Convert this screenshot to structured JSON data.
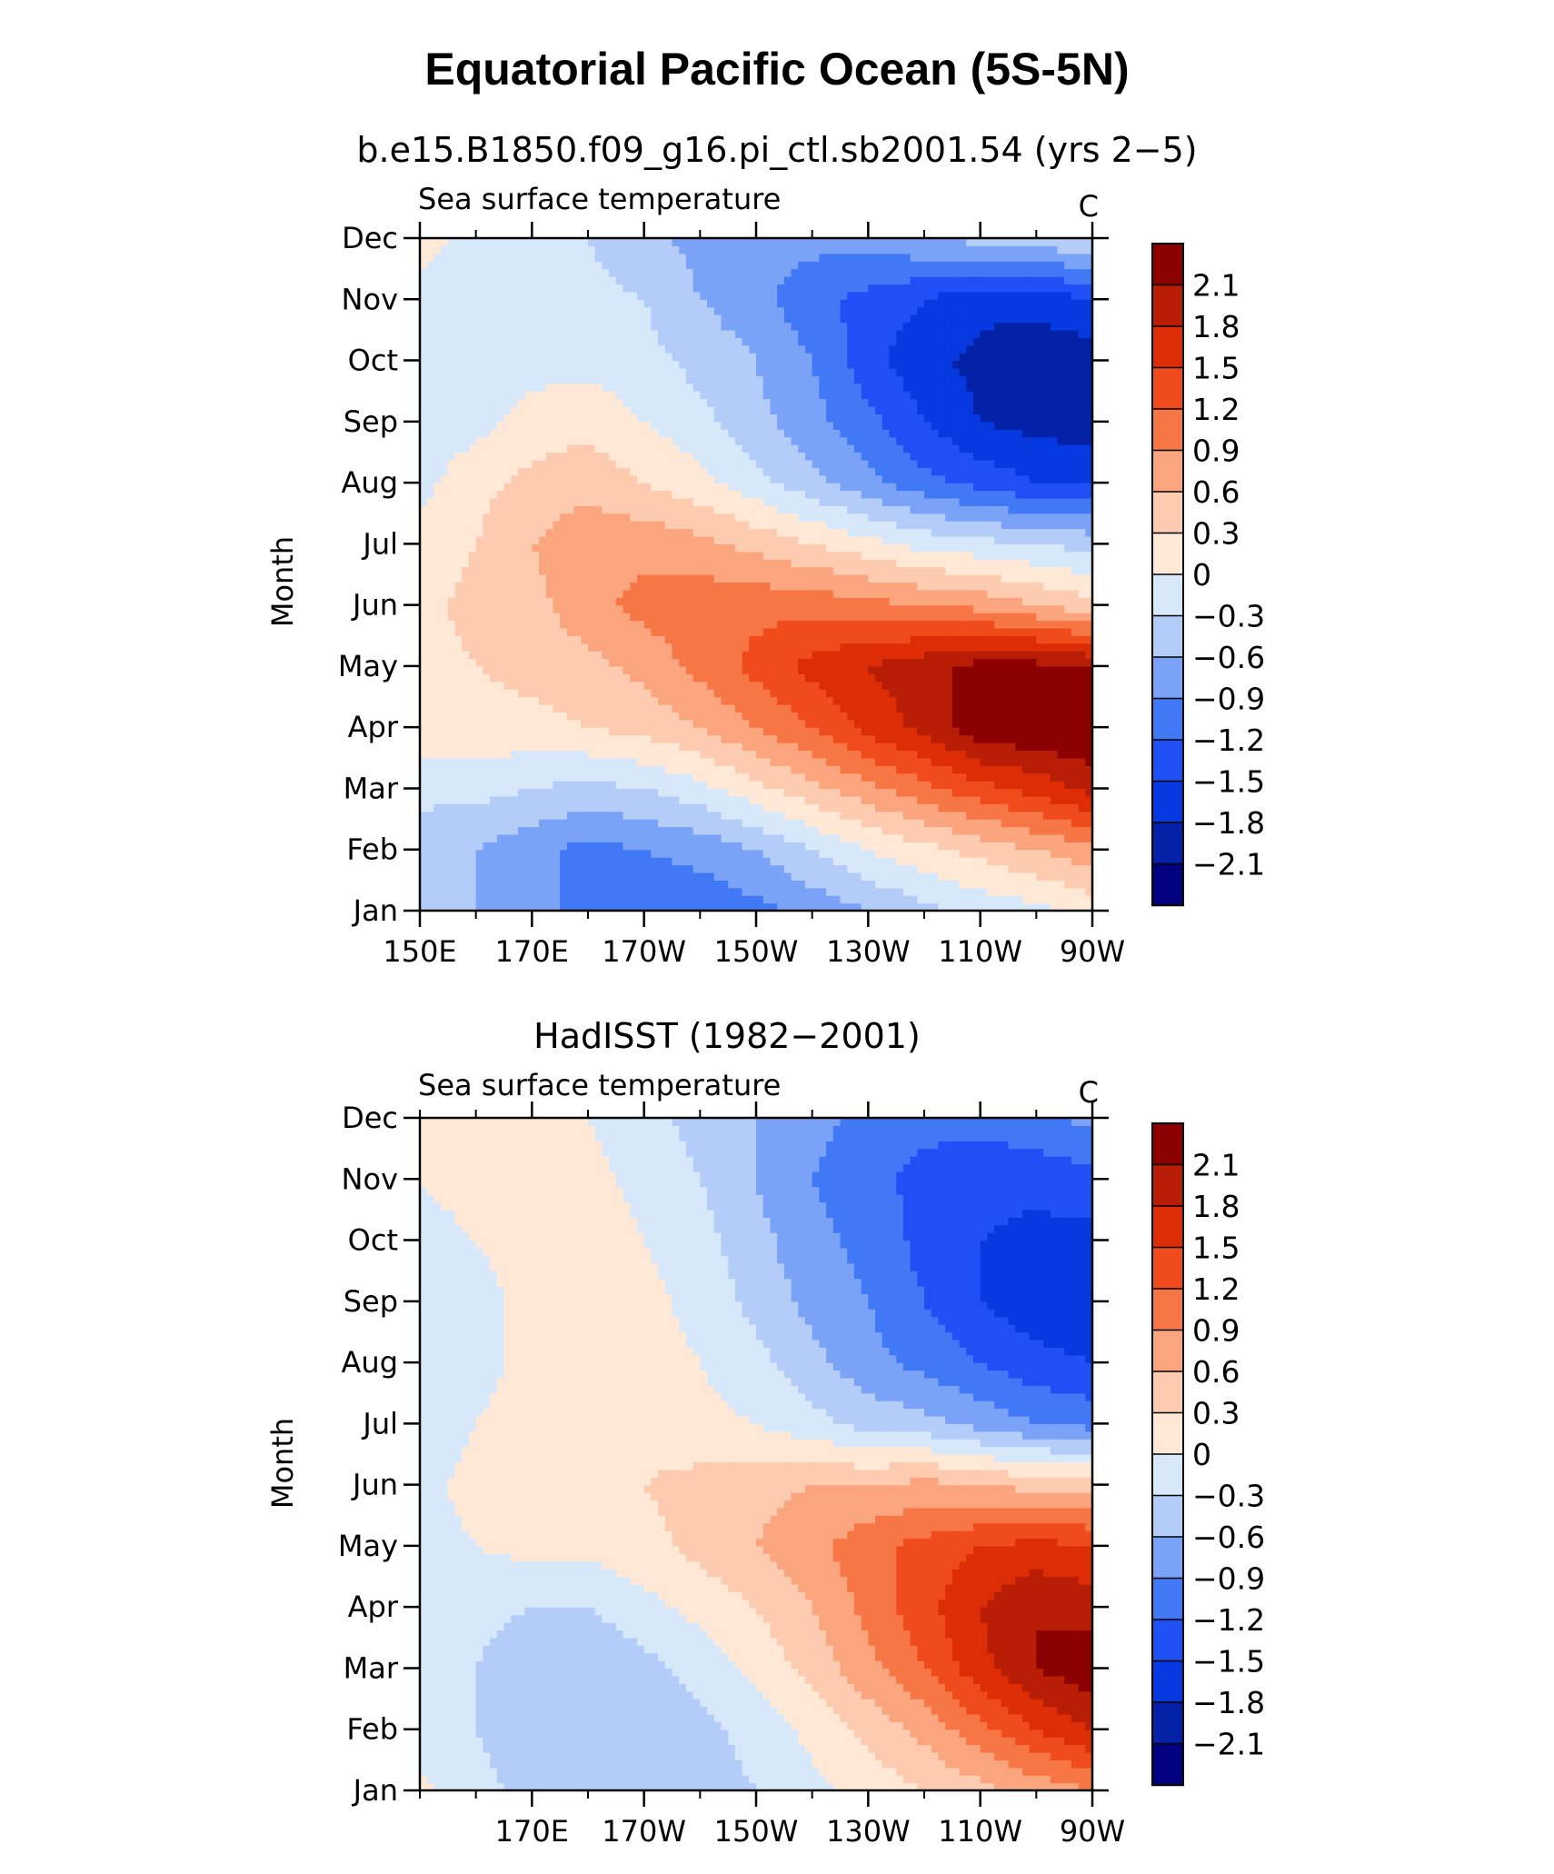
{
  "figure": {
    "title": "Equatorial Pacific Ocean (5S-5N)"
  },
  "chart_data": [
    {
      "type": "heatmap",
      "subtitle": "b.e15.B1850.f09_g16.pi_ctl.sb2001.54 (yrs 2−5)",
      "left_label": "Sea surface temperature",
      "units": "C",
      "xlabel": "",
      "ylabel": "Month",
      "x_tick_labels": [
        "150E",
        "170E",
        "170W",
        "150W",
        "130W",
        "110W",
        "90W"
      ],
      "x_ticks_lon": [
        150,
        170,
        190,
        210,
        230,
        250,
        270
      ],
      "y_tick_labels": [
        "Jan",
        "Feb",
        "Mar",
        "Apr",
        "May",
        "Jun",
        "Jul",
        "Aug",
        "Sep",
        "Oct",
        "Nov",
        "Dec"
      ],
      "xlim": [
        150,
        270
      ],
      "ylim": [
        1,
        12
      ],
      "contour_levels": [
        -2.1,
        -1.8,
        -1.5,
        -1.2,
        -0.9,
        -0.6,
        -0.3,
        0,
        0.3,
        0.6,
        0.9,
        1.2,
        1.5,
        1.8,
        2.1
      ],
      "colorbar_labels": [
        "2.1",
        "1.8",
        "1.5",
        "1.2",
        "0.9",
        "0.6",
        "0.3",
        "0",
        "−0.3",
        "−0.6",
        "−0.9",
        "−1.2",
        "−1.5",
        "−1.8",
        "−2.1"
      ],
      "lon_grid": [
        150,
        160,
        170,
        180,
        190,
        200,
        210,
        220,
        230,
        240,
        250,
        260,
        270
      ],
      "values": [
        [
          -0.5,
          -0.6,
          -0.8,
          -1.0,
          -1.1,
          -1.1,
          -1.0,
          -0.8,
          -0.6,
          -0.4,
          -0.2,
          -0.1,
          0.1
        ],
        [
          -0.5,
          -0.6,
          -0.8,
          -1.0,
          -0.9,
          -0.8,
          -0.6,
          -0.3,
          0.0,
          0.2,
          0.4,
          0.6,
          0.8
        ],
        [
          -0.2,
          -0.2,
          -0.3,
          -0.4,
          -0.3,
          -0.1,
          0.2,
          0.5,
          0.8,
          1.1,
          1.4,
          1.6,
          1.9
        ],
        [
          0.2,
          0.2,
          0.2,
          0.3,
          0.4,
          0.6,
          0.9,
          1.2,
          1.6,
          1.9,
          2.3,
          2.4,
          2.4
        ],
        [
          0.2,
          0.3,
          0.4,
          0.5,
          0.7,
          1.0,
          1.3,
          1.6,
          1.8,
          2.0,
          2.2,
          2.2,
          2.1
        ],
        [
          0.2,
          0.4,
          0.5,
          0.8,
          1.0,
          1.1,
          1.1,
          1.1,
          1.0,
          0.9,
          0.8,
          0.6,
          0.4
        ],
        [
          0.1,
          0.3,
          0.6,
          0.8,
          0.8,
          0.7,
          0.5,
          0.3,
          0.1,
          -0.1,
          -0.2,
          -0.3,
          -0.4
        ],
        [
          -0.1,
          0.2,
          0.4,
          0.5,
          0.3,
          0.1,
          -0.2,
          -0.5,
          -0.8,
          -1.1,
          -1.3,
          -1.5,
          -1.5
        ],
        [
          -0.2,
          -0.1,
          0.1,
          0.2,
          0.0,
          -0.2,
          -0.5,
          -0.8,
          -1.1,
          -1.5,
          -1.8,
          -1.9,
          -2.0
        ],
        [
          -0.2,
          -0.2,
          -0.1,
          -0.1,
          -0.2,
          -0.4,
          -0.6,
          -0.9,
          -1.4,
          -1.7,
          -1.9,
          -2.0,
          -2.0
        ],
        [
          -0.1,
          -0.2,
          -0.2,
          -0.2,
          -0.3,
          -0.6,
          -0.8,
          -1.1,
          -1.3,
          -1.5,
          -1.7,
          -1.7,
          -1.5
        ],
        [
          0.1,
          -0.1,
          -0.2,
          -0.3,
          -0.5,
          -0.7,
          -0.8,
          -0.8,
          -0.8,
          -0.6,
          -0.5,
          -0.4,
          -0.3
        ]
      ]
    },
    {
      "type": "heatmap",
      "subtitle": "HadISST (1982−2001)",
      "left_label": "Sea surface temperature",
      "units": "C",
      "xlabel": "",
      "ylabel": "Month",
      "x_tick_labels": [
        "170E",
        "170W",
        "150W",
        "130W",
        "110W",
        "90W"
      ],
      "x_ticks_lon": [
        170,
        190,
        210,
        230,
        250,
        270
      ],
      "y_tick_labels": [
        "Jan",
        "Feb",
        "Mar",
        "Apr",
        "May",
        "Jun",
        "Jul",
        "Aug",
        "Sep",
        "Oct",
        "Nov",
        "Dec"
      ],
      "xlim": [
        150,
        270
      ],
      "ylim": [
        1,
        12
      ],
      "contour_levels": [
        -2.1,
        -1.8,
        -1.5,
        -1.2,
        -0.9,
        -0.6,
        -0.3,
        0,
        0.3,
        0.6,
        0.9,
        1.2,
        1.5,
        1.8,
        2.1
      ],
      "colorbar_labels": [
        "2.1",
        "1.8",
        "1.5",
        "1.2",
        "0.9",
        "0.6",
        "0.3",
        "0",
        "−0.3",
        "−0.6",
        "−0.9",
        "−1.2",
        "−1.5",
        "−1.8",
        "−2.1"
      ],
      "lon_grid": [
        150,
        160,
        170,
        180,
        190,
        200,
        210,
        220,
        230,
        240,
        250,
        260,
        270
      ],
      "values": [
        [
          0.1,
          -0.2,
          -0.4,
          -0.5,
          -0.5,
          -0.4,
          -0.3,
          -0.1,
          0.1,
          0.3,
          0.5,
          0.7,
          0.9
        ],
        [
          -0.2,
          -0.3,
          -0.5,
          -0.5,
          -0.5,
          -0.4,
          -0.2,
          0.1,
          0.4,
          0.7,
          1.1,
          1.5,
          1.8
        ],
        [
          -0.2,
          -0.3,
          -0.5,
          -0.6,
          -0.4,
          -0.2,
          0.1,
          0.4,
          0.8,
          1.2,
          1.7,
          2.1,
          2.3
        ],
        [
          -0.2,
          -0.2,
          -0.3,
          -0.3,
          -0.1,
          0.1,
          0.3,
          0.6,
          1.0,
          1.4,
          1.8,
          2.1,
          2.0
        ],
        [
          -0.1,
          0.0,
          0.1,
          0.1,
          0.2,
          0.4,
          0.6,
          0.8,
          1.1,
          1.3,
          1.5,
          1.6,
          1.5
        ],
        [
          -0.1,
          0.1,
          0.2,
          0.2,
          0.3,
          0.4,
          0.5,
          0.6,
          0.6,
          0.7,
          0.6,
          0.5,
          0.5
        ],
        [
          -0.2,
          0.0,
          0.1,
          0.2,
          0.2,
          0.1,
          0.0,
          -0.2,
          -0.4,
          -0.5,
          -0.7,
          -0.9,
          -1.0
        ],
        [
          -0.3,
          -0.1,
          0.1,
          0.2,
          0.1,
          0.0,
          -0.2,
          -0.5,
          -0.8,
          -1.0,
          -1.2,
          -1.4,
          -1.5
        ],
        [
          -0.2,
          -0.1,
          0.1,
          0.3,
          0.1,
          -0.1,
          -0.4,
          -0.7,
          -0.9,
          -1.2,
          -1.5,
          -1.7,
          -1.7
        ],
        [
          -0.1,
          0.0,
          0.1,
          0.2,
          0.0,
          -0.2,
          -0.5,
          -0.8,
          -1.0,
          -1.3,
          -1.5,
          -1.6,
          -1.6
        ],
        [
          0.0,
          0.1,
          0.1,
          0.1,
          -0.1,
          -0.3,
          -0.6,
          -0.9,
          -1.1,
          -1.3,
          -1.4,
          -1.4,
          -1.3
        ],
        [
          0.1,
          0.1,
          0.1,
          0.0,
          -0.2,
          -0.4,
          -0.6,
          -0.8,
          -1.0,
          -1.1,
          -1.1,
          -1.0,
          -0.8
        ]
      ]
    }
  ],
  "colors": {
    "levels_palette": [
      "#000080",
      "#0322A8",
      "#0639E0",
      "#1E50F5",
      "#4078F5",
      "#7AA3F7",
      "#B4CCF8",
      "#D8E8FB",
      "#FFE9D6",
      "#FCCBB0",
      "#FBA57F",
      "#F77645",
      "#F04B1C",
      "#DD2D06",
      "#B81D05",
      "#8B0000"
    ],
    "axis": "#000000",
    "background": "#ffffff"
  }
}
